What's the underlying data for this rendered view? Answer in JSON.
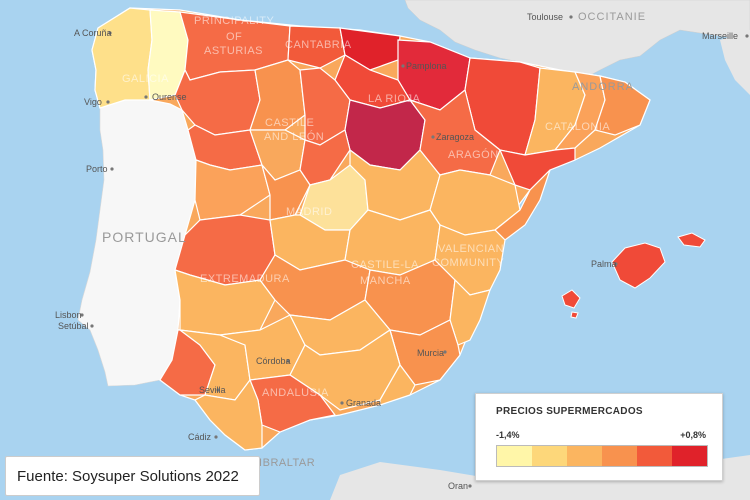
{
  "legend": {
    "title": "PRECIOS SUPERMERCADOS",
    "min_label": "-1,4%",
    "max_label": "+0,8%",
    "colors": [
      "#fff6a8",
      "#fdd77a",
      "#fbb560",
      "#f8924e",
      "#f25a3a",
      "#e0222a"
    ]
  },
  "source": "Fuente: Soysuper Solutions 2022",
  "labels": {
    "countries": {
      "portugal": "PORTUGAL",
      "andorra": "ANDORRA",
      "occitanie": "OCCITANIE"
    },
    "regions": {
      "galicia": "GALICIA",
      "asturias_1": "PRINCIPALITY",
      "asturias_2": "OF",
      "asturias_3": "ASTURIAS",
      "cantabria": "CANTABRIA",
      "la_rioja": "LA RIOJA",
      "castile_leon_1": "CASTILE",
      "castile_leon_2": "AND LEÓN",
      "aragon": "ARAGÓN",
      "catalonia": "CATALONIA",
      "madrid": "MADRID",
      "castile_la_mancha_1": "CASTILE-LA",
      "castile_la_mancha_2": "MANCHA",
      "valencian_1": "VALENCIAN",
      "valencian_2": "COMMUNITY",
      "extremadura": "EXTREMADURA",
      "andalusia": "ANDALUSIA",
      "gibraltar": "GIBRALTAR"
    },
    "cities": {
      "a_coruna": "A Coruña",
      "vigo": "Vigo",
      "ourense": "Ourense",
      "porto": "Porto",
      "lisbon": "Lisbon",
      "setubal": "Setúbal",
      "pamplona": "Pamplona",
      "zaragoza": "Zaragoza",
      "toulouse": "Toulouse",
      "marseille": "Marseille",
      "palma": "Palma",
      "cordoba": "Córdoba",
      "sevilla": "Sevilla",
      "cadiz": "Cádiz",
      "granada": "Granada",
      "murcia": "Murcia",
      "oran": "Oran"
    }
  }
}
